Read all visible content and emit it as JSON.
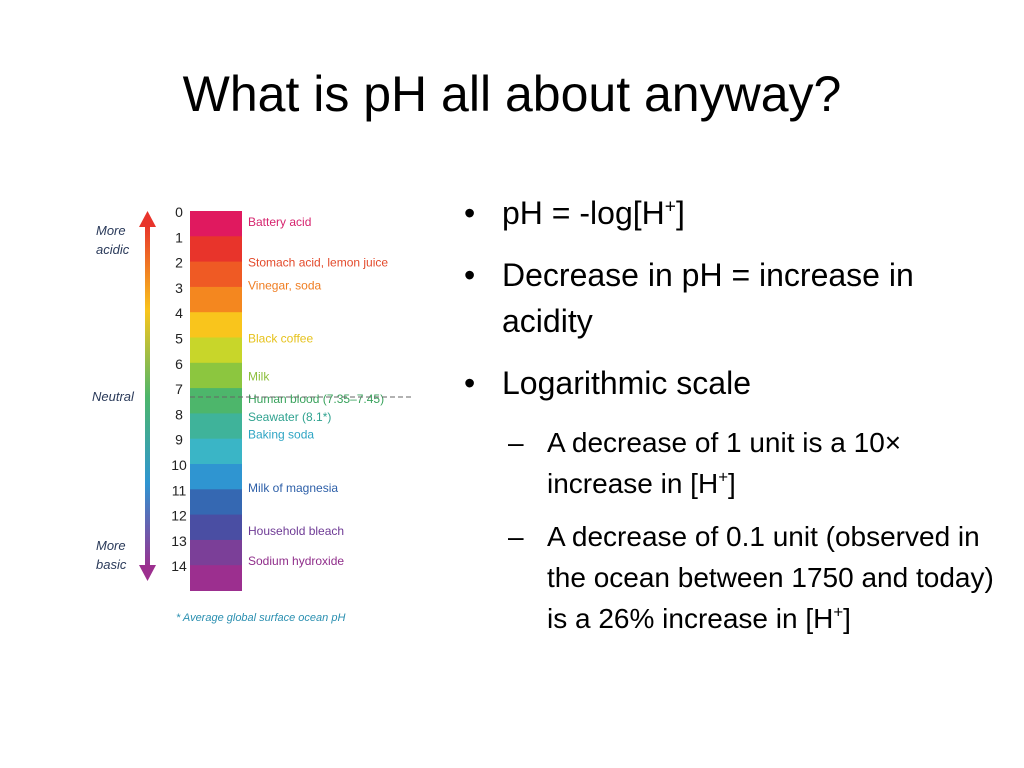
{
  "slide": {
    "title": "What is pH all about anyway?"
  },
  "bullets": [
    {
      "pre": "pH = -log[H",
      "sup": "+",
      "post": "]"
    },
    {
      "text": "Decrease in pH = increase in acidity"
    },
    {
      "text": "Logarithmic scale"
    }
  ],
  "sub_bullets": [
    {
      "pre": "A decrease of 1 unit is a 10× increase in [H",
      "sup": "+",
      "post": "]"
    },
    {
      "pre": "A decrease of 0.1 unit (observed in the ocean between 1750 and today) is a 26% increase in [H",
      "sup": "+",
      "post": "]"
    }
  ],
  "glyphs": {
    "bullet": "•",
    "dash": "–"
  },
  "ph_scale": {
    "side_labels": {
      "acidic": [
        "More",
        "acidic"
      ],
      "neutral": "Neutral",
      "basic": [
        "More",
        "basic"
      ]
    },
    "levels": [
      {
        "value": "0",
        "color": "#e0195f"
      },
      {
        "value": "1",
        "color": "#e8342b"
      },
      {
        "value": "2",
        "color": "#ef5a24"
      },
      {
        "value": "3",
        "color": "#f4871f"
      },
      {
        "value": "4",
        "color": "#f9c51c"
      },
      {
        "value": "5",
        "color": "#c8d62a"
      },
      {
        "value": "6",
        "color": "#8cc63f"
      },
      {
        "value": "7",
        "color": "#4db66b"
      },
      {
        "value": "8",
        "color": "#3fb39a"
      },
      {
        "value": "9",
        "color": "#3ab5c6"
      },
      {
        "value": "10",
        "color": "#2f95d1"
      },
      {
        "value": "11",
        "color": "#3568b2"
      },
      {
        "value": "12",
        "color": "#4a4ea3"
      },
      {
        "value": "13",
        "color": "#7b3f98"
      },
      {
        "value": "14",
        "color": "#9c2f8f"
      }
    ],
    "examples": [
      {
        "text": "Battery acid",
        "ph": 0.4,
        "color": "#d6246e"
      },
      {
        "text": "Stomach acid, lemon juice",
        "ph": 2.0,
        "color": "#e34a2b"
      },
      {
        "text": "Vinegar, soda",
        "ph": 2.9,
        "color": "#ef7d22"
      },
      {
        "text": "Black coffee",
        "ph": 5.0,
        "color": "#e6c21c"
      },
      {
        "text": "Milk",
        "ph": 6.5,
        "color": "#8dbf3d"
      },
      {
        "text": "Human blood (7.35–7.45)",
        "ph": 7.4,
        "color": "#3aa35d"
      },
      {
        "text": "Seawater (8.1*)",
        "ph": 8.1,
        "color": "#2fa28f"
      },
      {
        "text": "Baking soda",
        "ph": 8.8,
        "color": "#2ea5c4"
      },
      {
        "text": "Milk of magnesia",
        "ph": 10.9,
        "color": "#2d5fa8"
      },
      {
        "text": "Household bleach",
        "ph": 12.6,
        "color": "#6e3a95"
      },
      {
        "text": "Sodium hydroxide",
        "ph": 13.8,
        "color": "#8f2d8a"
      }
    ],
    "footnote": "* Average global surface ocean pH",
    "arrow_gradient": [
      "#e8342b",
      "#f9c51c",
      "#4db66b",
      "#2f95d1",
      "#9c2f8f"
    ]
  }
}
